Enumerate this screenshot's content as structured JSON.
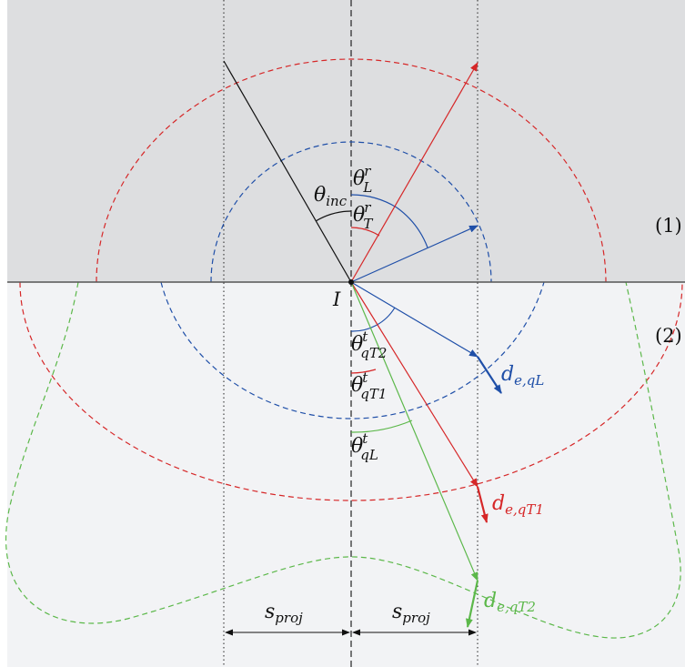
{
  "colors": {
    "medium1_fill": "#dddee0",
    "medium2_fill": "#f2f3f5",
    "interface": "#555555",
    "incident": "#111111",
    "longitudinal": "#d62728",
    "transverse_blue": "#1f4fa8",
    "green": "#5cb84a"
  },
  "labels": {
    "medium1": "(1)",
    "medium2": "(2)",
    "point": "I",
    "theta_inc": {
      "base": "θ",
      "sub": "inc"
    },
    "theta_L_r": {
      "base": "θ",
      "sup": "r",
      "sub": "L"
    },
    "theta_T_r": {
      "base": "θ",
      "sup": "r",
      "sub": "T"
    },
    "theta_qT2_t": {
      "base": "θ",
      "sup": "t",
      "sub": "qT2"
    },
    "theta_qT1_t": {
      "base": "θ",
      "sup": "t",
      "sub": "qT1"
    },
    "theta_qL_t": {
      "base": "θ",
      "sup": "t",
      "sub": "qL"
    },
    "d_e_qL": {
      "base": "d",
      "sub": "e,qL"
    },
    "d_e_qT1": {
      "base": "d",
      "sub": "e,qT1"
    },
    "d_e_qT2": {
      "base": "d",
      "sub": "e,qT2"
    },
    "s_proj_left": {
      "base": "s",
      "sub": "proj"
    },
    "s_proj_right": {
      "base": "s",
      "sub": "proj"
    }
  }
}
